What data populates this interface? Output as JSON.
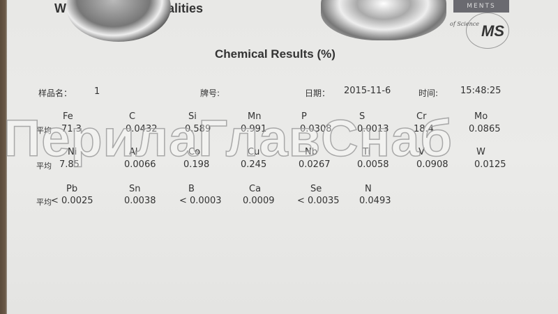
{
  "header_partial": "W                    g of different Qualities",
  "logo": {
    "text_top": "MENTS",
    "text_science": "of Science",
    "mark": "MS"
  },
  "title": "Chemical Results   (%)",
  "info": {
    "sample_label": "样品名：",
    "sample_value": "1",
    "grade_label": "牌号:",
    "date_label": "日期：",
    "date_value": "2015-11-6",
    "time_label": "时间:",
    "time_value": "15:48:25"
  },
  "avg_label": "平均",
  "rows": [
    {
      "elements": [
        "Fe",
        "C",
        "Si",
        "Mn",
        "P",
        "S",
        "Cr",
        "Mo"
      ],
      "values": [
        "71.3",
        "0.0432",
        "0.589",
        "0.991",
        "0.0308",
        "0.0013",
        "18.4",
        "0.0865"
      ]
    },
    {
      "elements": [
        "Ni",
        "Al",
        "Co",
        "Cu",
        "Nb",
        "Ti",
        "V",
        "W"
      ],
      "values": [
        "7.85",
        "0.0066",
        "0.198",
        "0.245",
        "0.0267",
        "0.0058",
        "0.0908",
        "0.0125"
      ]
    },
    {
      "elements": [
        "Pb",
        "Sn",
        "B",
        "Ca",
        "Se",
        "N"
      ],
      "values": [
        "< 0.0025",
        "0.0038",
        "< 0.0003",
        "0.0009",
        "< 0.0035",
        "0.0493"
      ]
    }
  ],
  "watermark": "ПерилаГлавСнаб"
}
